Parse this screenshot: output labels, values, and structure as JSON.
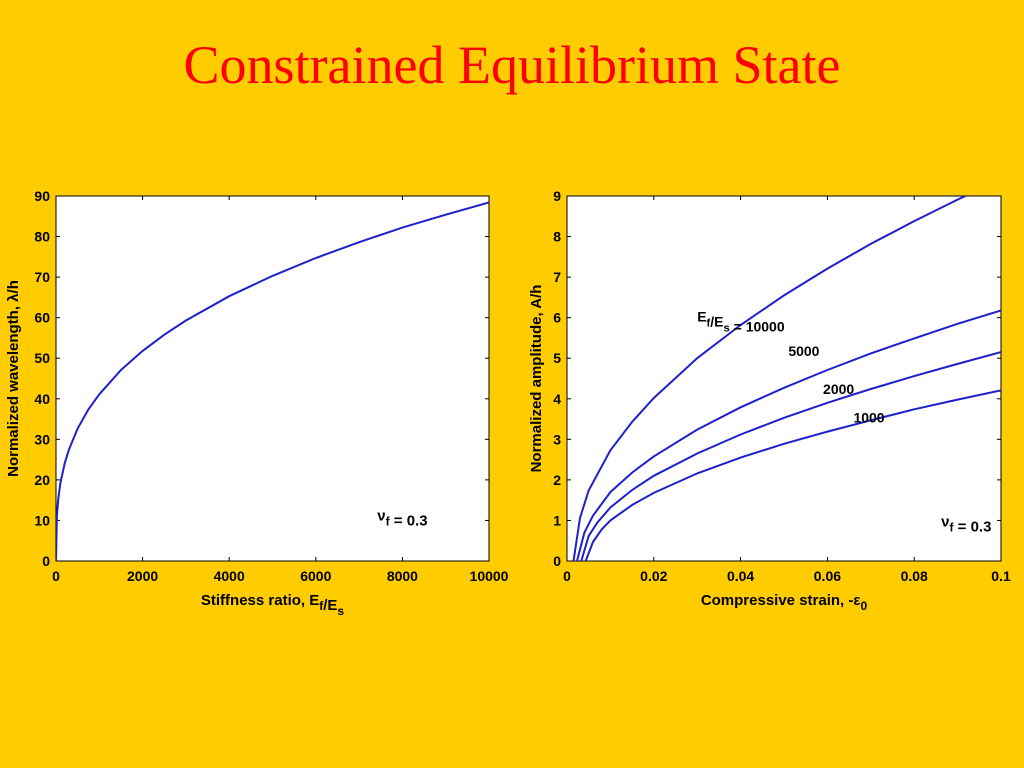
{
  "slide": {
    "title": "Constrained Equilibrium State"
  },
  "colors": {
    "background": "#FFCC00",
    "title": "#FF0000",
    "series": "#1F1FCC"
  },
  "chart_data": [
    {
      "type": "line",
      "title": "",
      "xlabel": "Stiffness ratio, E_f/E_s",
      "ylabel": "Normalized wavelength, λ/h",
      "xlim": [
        0,
        10000
      ],
      "ylim": [
        0,
        90
      ],
      "xticks": [
        0,
        2000,
        4000,
        6000,
        8000,
        10000
      ],
      "yticks": [
        0,
        10,
        20,
        30,
        40,
        50,
        60,
        70,
        80,
        90
      ],
      "grid": false,
      "annotations": [
        {
          "text": "ν_f = 0.3",
          "x": 8000,
          "y": 10
        }
      ],
      "series": [
        {
          "x": [
            0,
            20,
            50,
            100,
            200,
            300,
            500,
            750,
            1000,
            1500,
            2000,
            2500,
            3000,
            4000,
            5000,
            6000,
            7000,
            8000,
            9000,
            10000
          ],
          "y": [
            0,
            11.2,
            15.2,
            19.1,
            24.1,
            27.5,
            32.7,
            37.4,
            41.1,
            47.1,
            51.8,
            55.8,
            59.3,
            65.3,
            70.3,
            74.7,
            78.6,
            82.2,
            85.4,
            88.4
          ]
        }
      ]
    },
    {
      "type": "line",
      "title": "",
      "xlabel": "Compressive strain, -ε_0",
      "ylabel": "Normalized amplitude, A/h",
      "xlim": [
        0,
        0.1
      ],
      "ylim": [
        0,
        9
      ],
      "xticks": [
        0,
        0.02,
        0.04,
        0.06,
        0.08,
        0.1
      ],
      "yticks": [
        0,
        1,
        2,
        3,
        4,
        5,
        6,
        7,
        8,
        9
      ],
      "grid": false,
      "annotations": [
        {
          "text": "ν_f = 0.3",
          "x": 0.092,
          "y": 0.85
        }
      ],
      "series": [
        {
          "name": "E_f/E_s = 10000",
          "label_pos": [
            0.03,
            5.9
          ],
          "x": [
            0.0015,
            0.003,
            0.005,
            0.01,
            0.015,
            0.02,
            0.03,
            0.04,
            0.05,
            0.06,
            0.07,
            0.08,
            0.09,
            0.1
          ],
          "y": [
            0,
            1.06,
            1.74,
            2.73,
            3.43,
            4.02,
            5.0,
            5.82,
            6.55,
            7.21,
            7.82,
            8.38,
            8.91,
            9.41
          ]
        },
        {
          "name": "5000",
          "label_pos": [
            0.051,
            5.05
          ],
          "x": [
            0.0023,
            0.004,
            0.006,
            0.01,
            0.015,
            0.02,
            0.03,
            0.04,
            0.05,
            0.06,
            0.07,
            0.08,
            0.09,
            0.1
          ],
          "y": [
            0,
            0.7,
            1.12,
            1.7,
            2.18,
            2.58,
            3.24,
            3.79,
            4.27,
            4.71,
            5.12,
            5.49,
            5.85,
            6.18
          ]
        },
        {
          "name": "2000",
          "label_pos": [
            0.059,
            4.12
          ],
          "x": [
            0.0033,
            0.005,
            0.007,
            0.01,
            0.015,
            0.02,
            0.03,
            0.04,
            0.05,
            0.06,
            0.07,
            0.08,
            0.09,
            0.1
          ],
          "y": [
            0,
            0.62,
            0.95,
            1.32,
            1.75,
            2.1,
            2.65,
            3.12,
            3.53,
            3.9,
            4.24,
            4.56,
            4.86,
            5.15
          ]
        },
        {
          "name": "1000",
          "label_pos": [
            0.066,
            3.42
          ],
          "x": [
            0.0043,
            0.006,
            0.008,
            0.01,
            0.015,
            0.02,
            0.03,
            0.04,
            0.05,
            0.06,
            0.07,
            0.08,
            0.09,
            0.1
          ],
          "y": [
            0,
            0.47,
            0.78,
            1.0,
            1.38,
            1.68,
            2.16,
            2.55,
            2.89,
            3.19,
            3.47,
            3.74,
            3.98,
            4.21
          ]
        }
      ]
    }
  ]
}
